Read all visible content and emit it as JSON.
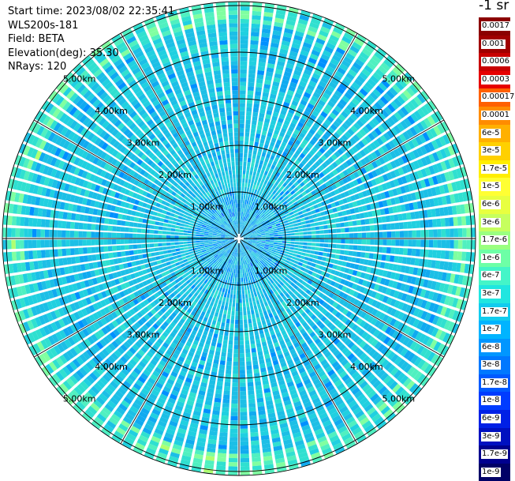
{
  "info": {
    "start_time": "Start time: 2023/08/02 22:35:41",
    "instrument": "WLS200s-181",
    "field": "Field: BETA",
    "elevation": "Elevation(deg): 35.30",
    "nrays": "NRays: 120"
  },
  "range_labels": {
    "r1": "1.00km",
    "r2": "2.00km",
    "r3": "3.00km",
    "r4": "4.00km",
    "r5": "5.00km"
  },
  "colorbar": {
    "unit_title": "-1 sr",
    "entries": [
      {
        "label": "0.0017",
        "color": "#8b0000"
      },
      {
        "label": "0.001",
        "color": "#a00000"
      },
      {
        "label": "0.0006",
        "color": "#c80000"
      },
      {
        "label": "0.0003",
        "color": "#e60000"
      },
      {
        "label": "0.00017",
        "color": "#ff6000"
      },
      {
        "label": "0.0001",
        "color": "#ff8c00"
      },
      {
        "label": "6e-5",
        "color": "#ffb000"
      },
      {
        "label": "3e-5",
        "color": "#ffd000"
      },
      {
        "label": "1.7e-5",
        "color": "#ffee00"
      },
      {
        "label": "1e-5",
        "color": "#ffff33"
      },
      {
        "label": "6e-6",
        "color": "#e8ff40"
      },
      {
        "label": "3e-6",
        "color": "#c6ff5e"
      },
      {
        "label": "1.7e-6",
        "color": "#9aff80"
      },
      {
        "label": "1e-6",
        "color": "#6dffa6"
      },
      {
        "label": "6e-7",
        "color": "#44f5c8"
      },
      {
        "label": "3e-7",
        "color": "#20e6e0"
      },
      {
        "label": "1.7e-7",
        "color": "#11ccee"
      },
      {
        "label": "1e-7",
        "color": "#00b4ff"
      },
      {
        "label": "6e-8",
        "color": "#0096ff"
      },
      {
        "label": "3e-8",
        "color": "#0078ff"
      },
      {
        "label": "1.7e-8",
        "color": "#005aff"
      },
      {
        "label": "1e-8",
        "color": "#003cff"
      },
      {
        "label": "6e-9",
        "color": "#0020e6"
      },
      {
        "label": "3e-9",
        "color": "#0010c0"
      },
      {
        "label": "1.7e-9",
        "color": "#00008e"
      },
      {
        "label": "1e-9",
        "color": "#000066"
      }
    ]
  },
  "plot": {
    "rays": 120,
    "max_range_km": 5.3,
    "range_step_km": 0.09
  }
}
